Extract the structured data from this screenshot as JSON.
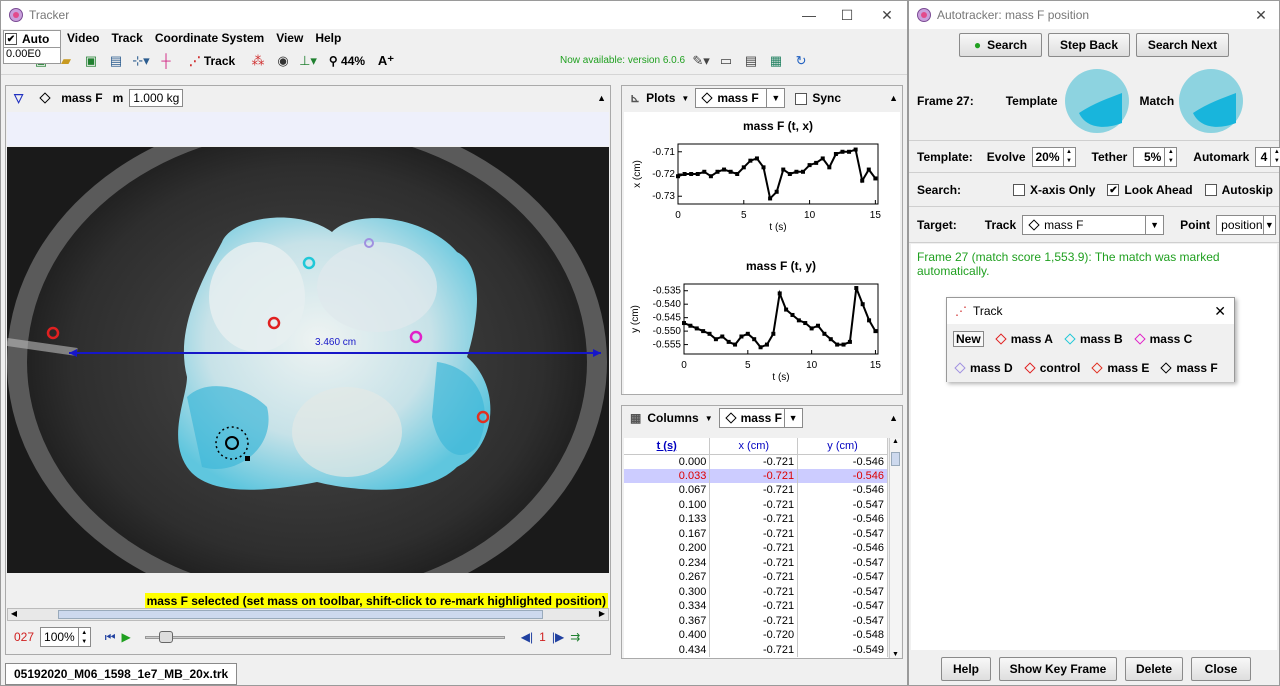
{
  "main": {
    "title": "Tracker",
    "menu": [
      "Video",
      "Track",
      "Coordinate System",
      "View",
      "Help"
    ],
    "auto_label": "Auto",
    "auto_value": "0.00E0",
    "toolbar": {
      "track_label": "Track",
      "zoom": "44%",
      "zoom_text_icon": "A⁺",
      "update_notice": "Now available: version 6.0.6"
    },
    "panel": {
      "track": "mass F",
      "mass_label": "m",
      "mass_value": "1.000 kg"
    },
    "video": {
      "measure_label": "3.460 cm",
      "status": "mass F selected (set mass on toolbar, shift-click to re-mark highlighted position)"
    },
    "player": {
      "frame": "027",
      "zoom": "100%",
      "step": "1"
    },
    "file_tab": "05192020_M06_1598_1e7_MB_20x.trk",
    "accent_blue": "#1616c8",
    "status_yellow": "#ffff00",
    "update_green": "#20a020"
  },
  "plots": {
    "menu_label": "Plots",
    "track": "mass F",
    "sync_label": "Sync",
    "chart1_title": "mass F (t, x)",
    "chart1_ylabel": "x (cm)",
    "chart1_xlabel": "t (s)",
    "chart1_yticks": [
      "-0.71",
      "-0.72",
      "-0.73"
    ],
    "chart2_title": "mass F (t, y)",
    "chart2_ylabel": "y (cm)",
    "chart2_xlabel": "t (s)",
    "chart2_yticks": [
      "-0.535",
      "-0.540",
      "-0.545",
      "-0.550",
      "-0.555"
    ],
    "xticks": [
      "0",
      "5",
      "10",
      "15"
    ]
  },
  "chart_data": [
    {
      "type": "line",
      "title": "mass F (t, x)",
      "xlabel": "t (s)",
      "ylabel": "x (cm)",
      "xlim": [
        0,
        15.2
      ],
      "ylim": [
        -0.7335,
        -0.7065
      ],
      "x": [
        0,
        0.5,
        1,
        1.5,
        2,
        2.5,
        3,
        3.5,
        4,
        4.5,
        5,
        5.5,
        6,
        6.5,
        7,
        7.5,
        8,
        8.5,
        9,
        9.5,
        10,
        10.5,
        11,
        11.5,
        12,
        12.5,
        13,
        13.5,
        14,
        14.5,
        15
      ],
      "y": [
        -0.721,
        -0.72,
        -0.72,
        -0.72,
        -0.719,
        -0.721,
        -0.719,
        -0.718,
        -0.719,
        -0.72,
        -0.717,
        -0.714,
        -0.713,
        -0.717,
        -0.731,
        -0.728,
        -0.718,
        -0.72,
        -0.719,
        -0.719,
        -0.716,
        -0.715,
        -0.713,
        -0.717,
        -0.711,
        -0.71,
        -0.71,
        -0.709,
        -0.723,
        -0.718,
        -0.722
      ]
    },
    {
      "type": "line",
      "title": "mass F (t, y)",
      "xlabel": "t (s)",
      "ylabel": "y (cm)",
      "xlim": [
        0,
        15.2
      ],
      "ylim": [
        -0.5585,
        -0.5325
      ],
      "x": [
        0,
        0.5,
        1,
        1.5,
        2,
        2.5,
        3,
        3.5,
        4,
        4.5,
        5,
        5.5,
        6,
        6.5,
        7,
        7.5,
        8,
        8.5,
        9,
        9.5,
        10,
        10.5,
        11,
        11.5,
        12,
        12.5,
        13,
        13.5,
        14,
        14.5,
        15
      ],
      "y": [
        -0.547,
        -0.548,
        -0.549,
        -0.55,
        -0.551,
        -0.553,
        -0.552,
        -0.554,
        -0.555,
        -0.552,
        -0.551,
        -0.553,
        -0.556,
        -0.555,
        -0.551,
        -0.536,
        -0.542,
        -0.544,
        -0.546,
        -0.547,
        -0.549,
        -0.548,
        -0.551,
        -0.553,
        -0.555,
        -0.555,
        -0.554,
        -0.534,
        -0.54,
        -0.546,
        -0.55
      ]
    }
  ],
  "table": {
    "menu_label": "Columns",
    "track": "mass F",
    "headers": [
      "t (s)",
      "x (cm)",
      "y (cm)"
    ],
    "rows": [
      [
        "0.000",
        "-0.721",
        "-0.546"
      ],
      [
        "0.033",
        "-0.721",
        "-0.546"
      ],
      [
        "0.067",
        "-0.721",
        "-0.546"
      ],
      [
        "0.100",
        "-0.721",
        "-0.547"
      ],
      [
        "0.133",
        "-0.721",
        "-0.546"
      ],
      [
        "0.167",
        "-0.721",
        "-0.547"
      ],
      [
        "0.200",
        "-0.721",
        "-0.546"
      ],
      [
        "0.234",
        "-0.721",
        "-0.547"
      ],
      [
        "0.267",
        "-0.721",
        "-0.547"
      ],
      [
        "0.300",
        "-0.721",
        "-0.547"
      ],
      [
        "0.334",
        "-0.721",
        "-0.547"
      ],
      [
        "0.367",
        "-0.721",
        "-0.547"
      ],
      [
        "0.400",
        "-0.720",
        "-0.548"
      ],
      [
        "0.434",
        "-0.721",
        "-0.549"
      ]
    ],
    "selected_row": 1
  },
  "autotracker": {
    "title": "Autotracker: mass F position",
    "search": "Search",
    "step_back": "Step Back",
    "search_next": "Search Next",
    "frame": "Frame 27:",
    "template": "Template",
    "match": "Match",
    "template_label": "Template:",
    "evolve": "Evolve",
    "evolve_val": "20%",
    "tether": "Tether",
    "tether_val": "5%",
    "automark": "Automark",
    "automark_val": "4",
    "search_label": "Search:",
    "xaxis_only": "X-axis Only",
    "look_ahead": "Look Ahead",
    "autoskip": "Autoskip",
    "target_label": "Target:",
    "track_label": "Track",
    "track_val": "mass F",
    "point_label": "Point",
    "point_val": "position",
    "message": "Frame 27 (match score 1,553.9): The match was marked automatically.",
    "help": "Help",
    "show_key_frame": "Show Key Frame",
    "delete": "Delete",
    "close": "Close"
  },
  "track_popup": {
    "title": "Track",
    "new": "New",
    "items": [
      {
        "label": "mass A",
        "color": "#e02020"
      },
      {
        "label": "mass B",
        "color": "#20c8d8"
      },
      {
        "label": "mass C",
        "color": "#e020c8"
      },
      {
        "label": "mass D",
        "color": "#a090e0"
      },
      {
        "label": "control",
        "color": "#e02020"
      },
      {
        "label": "mass E",
        "color": "#e03020"
      },
      {
        "label": "mass F",
        "color": "#000000"
      }
    ]
  }
}
